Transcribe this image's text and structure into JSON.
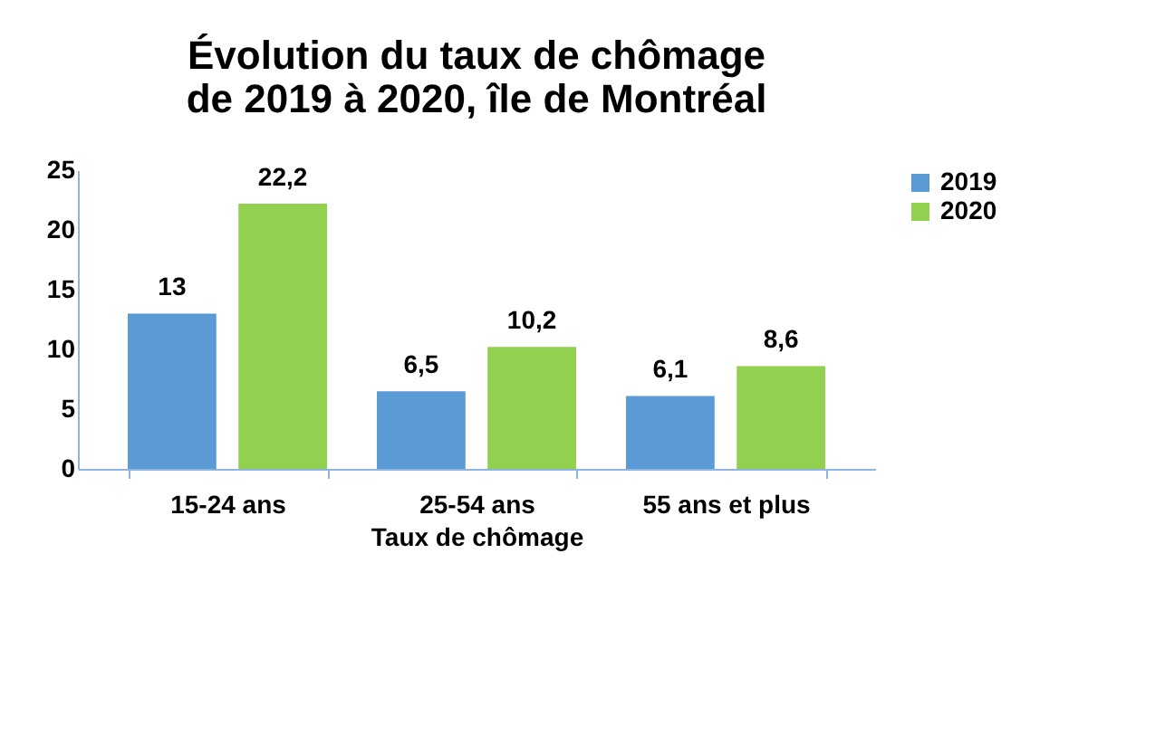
{
  "chart_data": {
    "type": "bar",
    "title": "Évolution du taux de chômage de 2019 à 2020, île de Montréal",
    "xlabel": "Taux de chômage",
    "categories": [
      "15-24 ans",
      "25-54 ans",
      "55 ans et plus"
    ],
    "series": [
      {
        "name": "2019",
        "color": "#5b9bd5",
        "values": [
          13,
          6.5,
          6.1
        ],
        "value_labels": [
          "13",
          "6,5",
          "6,1"
        ]
      },
      {
        "name": "2020",
        "color": "#92d050",
        "values": [
          22.2,
          10.2,
          8.6
        ],
        "value_labels": [
          "22,2",
          "10,2",
          "8,6"
        ]
      }
    ],
    "ylim": [
      0,
      25
    ],
    "yticks": [
      0,
      5,
      10,
      15,
      20,
      25
    ],
    "grid": false,
    "legend": "right"
  }
}
